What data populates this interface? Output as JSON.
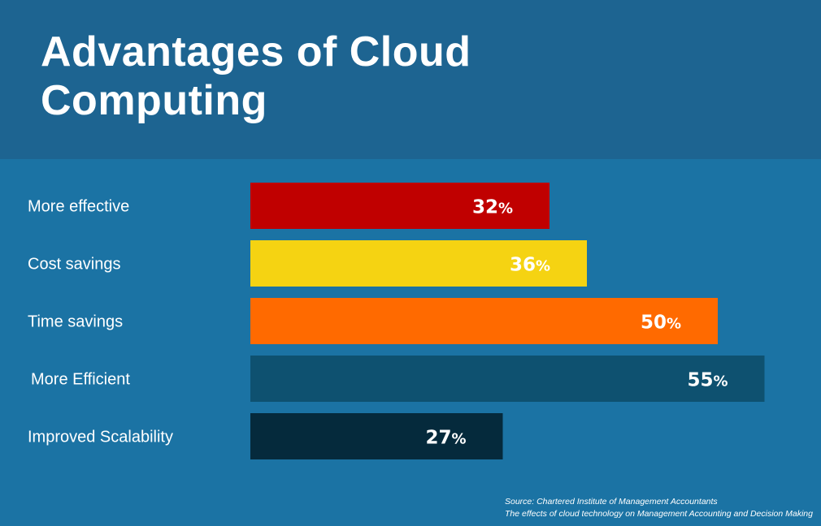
{
  "title": "Advantages of Cloud Computing",
  "source": {
    "line1": "Source: Chartered Institute of Management Accountants",
    "line2": "The effects of cloud technology on Management Accounting and Decision Making"
  },
  "colors": {
    "background": "#1b73a4",
    "header": "#1d6491"
  },
  "chart_data": {
    "type": "bar",
    "orientation": "horizontal",
    "title": "Advantages of Cloud Computing",
    "categories": [
      "More effective",
      "Cost savings",
      "Time savings",
      "More Efficient",
      "Improved Scalability"
    ],
    "values": [
      32,
      36,
      50,
      55,
      27
    ],
    "value_labels": [
      "32%",
      "36%",
      "50%",
      "55%",
      "27%"
    ],
    "unit": "%",
    "bar_colors": [
      "#c00000",
      "#f5d312",
      "#ff6a00",
      "#0e5170",
      "#052a3c"
    ],
    "xlabel": "",
    "ylabel": "",
    "grid": false,
    "legend": "none"
  }
}
